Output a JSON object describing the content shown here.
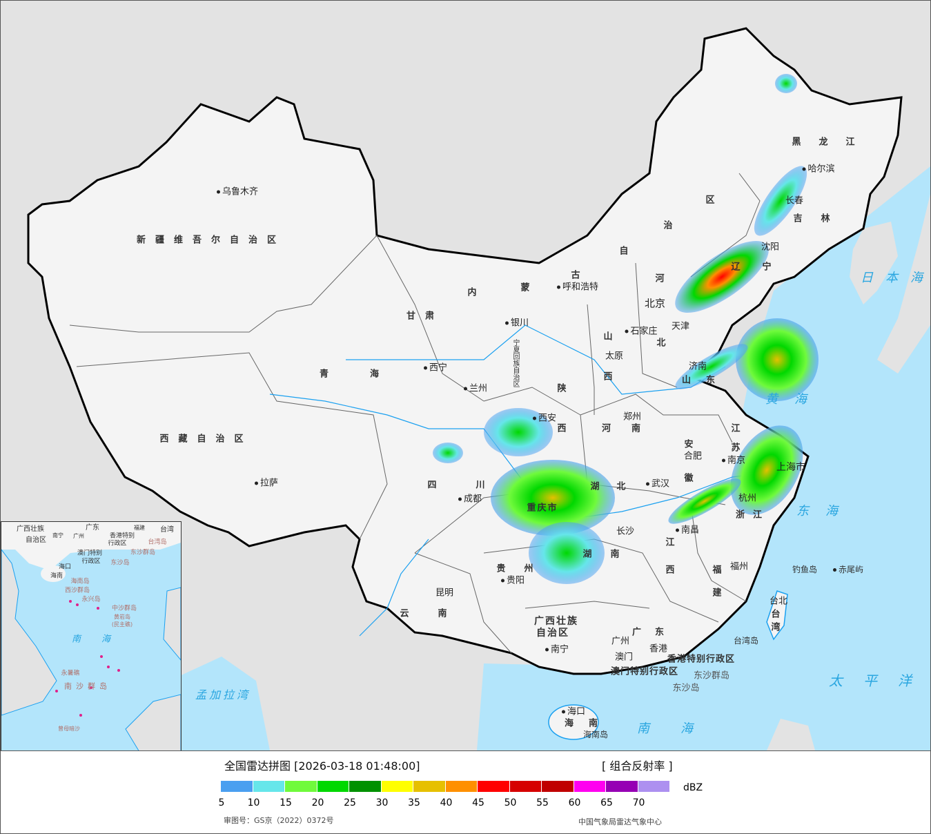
{
  "legend": {
    "title": "全国雷达拼图 [2026-03-18 01:48:00]",
    "product": "[ 组合反射率 ]",
    "unit": "dBZ",
    "ticks": [
      "5",
      "10",
      "15",
      "20",
      "25",
      "30",
      "35",
      "40",
      "45",
      "50",
      "55",
      "60",
      "65",
      "70"
    ],
    "colors": [
      "#4a9ff0",
      "#66e6ea",
      "#70fa3c",
      "#00d800",
      "#009100",
      "#ffff00",
      "#e6c000",
      "#ff9000",
      "#ff0000",
      "#d60000",
      "#c00000",
      "#ff00f0",
      "#9600b4",
      "#ad90f0"
    ],
    "approval_number": "审图号：GS京（2022）0372号",
    "agency": "中国气象局雷达气象中心"
  },
  "colors": {
    "sea": "#b3e5fb",
    "land": "#f4f4f4",
    "outside": "#e3e3e3",
    "river": "#1aa0f0"
  },
  "labels": [
    "乌鲁木齐",
    "新疆维吾尔自治区",
    "西藏自治区",
    "拉萨",
    "青海",
    "西宁",
    "甘肃",
    "兰州",
    "内",
    "蒙",
    "古",
    "自",
    "治",
    "区",
    "呼和浩特",
    "银川",
    "宁夏回族自治区",
    "陕",
    "西",
    "西安",
    "山",
    "西",
    "太原",
    "石家庄",
    "河",
    "北",
    "北京",
    "天津",
    "辽",
    "宁",
    "沈阳",
    "吉",
    "林",
    "长春",
    "黑龙江",
    "哈尔滨",
    "山东",
    "济南",
    "河南",
    "郑州",
    "江",
    "苏",
    "南京",
    "安",
    "徽",
    "合肥",
    "上海市",
    "湖",
    "北",
    "武汉",
    "四",
    "川",
    "成都",
    "重庆市",
    "浙江",
    "杭州",
    "湖",
    "南",
    "长沙",
    "江",
    "西",
    "南昌",
    "贵",
    "州",
    "贵阳",
    "云",
    "南",
    "昆明",
    "福",
    "建",
    "福州",
    "广西壮族",
    "自治区",
    "南宁",
    "广东",
    "广州",
    "香港",
    "澳门",
    "香港特别行政区",
    "澳门特别行政区",
    "东沙群岛",
    "东沙岛",
    "海口",
    "海南",
    "海南岛",
    "台北",
    "台湾",
    "台湾岛",
    "钓鱼岛",
    "赤尾屿",
    "日本海",
    "东海",
    "黄海",
    "太平洋",
    "南海",
    "孟加拉湾"
  ],
  "inset_labels": [
    "广西壮族",
    "自治区",
    "南宁",
    "广东",
    "广州",
    "福建",
    "台湾",
    "香港特别",
    "行政区",
    "澳门特别",
    "行政区",
    "台湾岛",
    "东沙群岛",
    "东沙岛",
    "海口",
    "海南",
    "海南岛",
    "西沙群岛",
    "永兴岛",
    "中沙群岛",
    "黄岩岛",
    "(民主礁)",
    "南海",
    "永暑礁",
    "南沙群岛",
    "曾母暗沙"
  ]
}
